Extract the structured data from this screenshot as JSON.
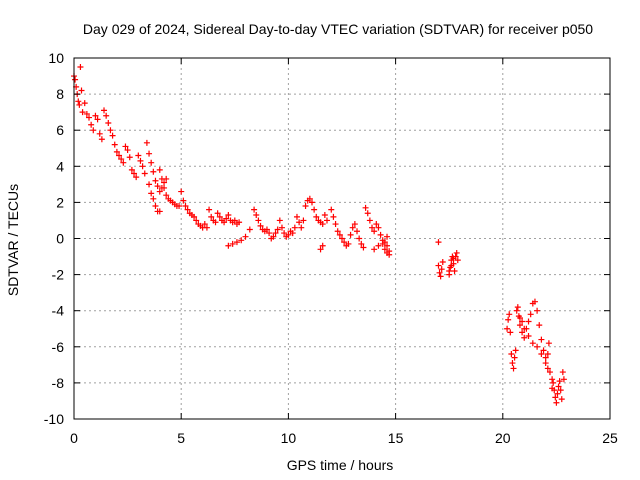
{
  "chart_data": {
    "type": "scatter",
    "title": "Day 029 of 2024, Sidereal Day-to-day VTEC variation (SDTVAR) for receiver p050",
    "xlabel": "GPS time / hours",
    "ylabel": "SDTVAR / TECUs",
    "xlim": [
      0,
      25
    ],
    "ylim": [
      -10,
      10
    ],
    "x_ticks": [
      0,
      5,
      10,
      15,
      20,
      25
    ],
    "y_ticks": [
      -10,
      -8,
      -6,
      -4,
      -2,
      0,
      2,
      4,
      6,
      8,
      10
    ],
    "x_tick_labels": [
      "0",
      "5",
      "10",
      "15",
      "20",
      "25"
    ],
    "y_tick_labels": [
      "-10",
      "-8",
      "-6",
      "-4",
      "-2",
      "0",
      "2",
      "4",
      "6",
      "8",
      "10"
    ],
    "grid": true,
    "marker": "+",
    "series": [
      {
        "name": "SDTVAR",
        "color": "#ff0000",
        "points": [
          [
            0.0,
            9.0
          ],
          [
            0.05,
            8.8
          ],
          [
            0.1,
            8.4
          ],
          [
            0.15,
            8.0
          ],
          [
            0.2,
            7.6
          ],
          [
            0.25,
            7.4
          ],
          [
            0.3,
            9.5
          ],
          [
            0.35,
            8.2
          ],
          [
            0.4,
            7.0
          ],
          [
            0.5,
            7.5
          ],
          [
            0.6,
            6.9
          ],
          [
            0.7,
            6.7
          ],
          [
            0.8,
            6.3
          ],
          [
            0.9,
            6.0
          ],
          [
            1.0,
            6.8
          ],
          [
            1.1,
            6.6
          ],
          [
            1.2,
            5.8
          ],
          [
            1.3,
            5.5
          ],
          [
            1.4,
            7.1
          ],
          [
            1.5,
            6.8
          ],
          [
            1.6,
            6.4
          ],
          [
            1.7,
            6.0
          ],
          [
            1.8,
            5.7
          ],
          [
            1.9,
            5.2
          ],
          [
            2.0,
            4.8
          ],
          [
            2.1,
            4.6
          ],
          [
            2.2,
            4.4
          ],
          [
            2.3,
            4.2
          ],
          [
            2.4,
            5.1
          ],
          [
            2.5,
            4.9
          ],
          [
            2.6,
            4.5
          ],
          [
            2.7,
            3.8
          ],
          [
            2.8,
            3.6
          ],
          [
            2.9,
            3.4
          ],
          [
            3.0,
            4.6
          ],
          [
            3.1,
            4.3
          ],
          [
            3.2,
            4.0
          ],
          [
            3.3,
            3.6
          ],
          [
            3.4,
            5.3
          ],
          [
            3.5,
            4.7
          ],
          [
            3.6,
            4.2
          ],
          [
            3.7,
            3.7
          ],
          [
            3.8,
            3.2
          ],
          [
            3.9,
            2.9
          ],
          [
            4.0,
            3.8
          ],
          [
            4.1,
            3.3
          ],
          [
            4.2,
            2.8
          ],
          [
            4.3,
            2.4
          ],
          [
            4.4,
            2.2
          ],
          [
            4.5,
            2.1
          ],
          [
            3.5,
            3.0
          ],
          [
            3.6,
            2.5
          ],
          [
            3.7,
            2.2
          ],
          [
            3.8,
            1.8
          ],
          [
            3.9,
            1.5
          ],
          [
            4.0,
            1.5
          ],
          [
            4.0,
            2.6
          ],
          [
            4.1,
            2.8
          ],
          [
            4.2,
            3.1
          ],
          [
            4.3,
            3.3
          ],
          [
            4.6,
            2.0
          ],
          [
            4.7,
            1.9
          ],
          [
            4.8,
            1.8
          ],
          [
            4.9,
            1.8
          ],
          [
            5.0,
            2.6
          ],
          [
            5.1,
            2.1
          ],
          [
            5.2,
            1.8
          ],
          [
            5.3,
            1.6
          ],
          [
            5.4,
            1.4
          ],
          [
            5.5,
            1.3
          ],
          [
            5.6,
            1.2
          ],
          [
            5.7,
            1.0
          ],
          [
            5.8,
            0.8
          ],
          [
            5.9,
            0.7
          ],
          [
            6.0,
            0.6
          ],
          [
            6.1,
            0.8
          ],
          [
            6.2,
            0.6
          ],
          [
            6.3,
            1.6
          ],
          [
            6.4,
            1.2
          ],
          [
            6.5,
            1.0
          ],
          [
            6.6,
            0.9
          ],
          [
            6.7,
            1.4
          ],
          [
            6.8,
            1.2
          ],
          [
            6.9,
            1.0
          ],
          [
            7.0,
            0.9
          ],
          [
            7.1,
            1.1
          ],
          [
            7.2,
            1.3
          ],
          [
            7.3,
            1.0
          ],
          [
            7.4,
            0.9
          ],
          [
            7.5,
            1.0
          ],
          [
            7.6,
            0.8
          ],
          [
            7.7,
            0.9
          ],
          [
            7.2,
            -0.4
          ],
          [
            7.4,
            -0.3
          ],
          [
            7.6,
            -0.2
          ],
          [
            7.8,
            -0.1
          ],
          [
            8.0,
            0.1
          ],
          [
            8.2,
            0.5
          ],
          [
            8.4,
            1.6
          ],
          [
            8.5,
            1.3
          ],
          [
            8.6,
            1.0
          ],
          [
            8.7,
            0.7
          ],
          [
            8.8,
            0.5
          ],
          [
            8.9,
            0.4
          ],
          [
            9.0,
            0.5
          ],
          [
            9.1,
            0.3
          ],
          [
            9.2,
            0.0
          ],
          [
            9.3,
            0.1
          ],
          [
            9.4,
            0.3
          ],
          [
            9.5,
            0.5
          ],
          [
            9.6,
            1.0
          ],
          [
            9.7,
            0.6
          ],
          [
            9.8,
            0.3
          ],
          [
            9.9,
            0.1
          ],
          [
            10.0,
            0.2
          ],
          [
            10.1,
            0.4
          ],
          [
            10.2,
            0.3
          ],
          [
            10.3,
            0.6
          ],
          [
            10.4,
            1.2
          ],
          [
            10.5,
            0.9
          ],
          [
            10.6,
            0.6
          ],
          [
            10.7,
            1.0
          ],
          [
            10.8,
            1.8
          ],
          [
            10.9,
            2.1
          ],
          [
            11.0,
            2.2
          ],
          [
            11.1,
            2.0
          ],
          [
            11.2,
            1.6
          ],
          [
            11.3,
            1.2
          ],
          [
            11.4,
            1.0
          ],
          [
            11.5,
            0.9
          ],
          [
            11.6,
            0.8
          ],
          [
            11.7,
            1.3
          ],
          [
            11.8,
            1.0
          ],
          [
            11.5,
            -0.6
          ],
          [
            11.6,
            -0.4
          ],
          [
            12.0,
            1.6
          ],
          [
            12.1,
            1.2
          ],
          [
            12.2,
            0.8
          ],
          [
            12.3,
            0.4
          ],
          [
            12.4,
            0.2
          ],
          [
            12.5,
            0.0
          ],
          [
            12.6,
            -0.2
          ],
          [
            12.7,
            -0.4
          ],
          [
            12.8,
            -0.3
          ],
          [
            12.9,
            0.2
          ],
          [
            13.0,
            0.6
          ],
          [
            13.1,
            0.8
          ],
          [
            13.2,
            0.4
          ],
          [
            13.3,
            0.0
          ],
          [
            13.4,
            -0.3
          ],
          [
            13.5,
            -0.5
          ],
          [
            13.6,
            1.7
          ],
          [
            13.7,
            1.4
          ],
          [
            13.8,
            1.0
          ],
          [
            13.9,
            0.6
          ],
          [
            14.0,
            0.4
          ],
          [
            14.1,
            0.8
          ],
          [
            14.2,
            0.6
          ],
          [
            14.3,
            0.2
          ],
          [
            14.4,
            -0.3
          ],
          [
            14.5,
            -0.6
          ],
          [
            14.6,
            -0.8
          ],
          [
            14.7,
            -0.9
          ],
          [
            14.5,
            -0.2
          ],
          [
            14.6,
            0.1
          ],
          [
            14.0,
            -0.6
          ],
          [
            14.2,
            -0.4
          ],
          [
            14.4,
            -0.1
          ],
          [
            14.6,
            -0.4
          ],
          [
            14.7,
            -0.7
          ],
          [
            17.0,
            -0.2
          ],
          [
            17.0,
            -1.5
          ],
          [
            17.05,
            -1.9
          ],
          [
            17.1,
            -2.1
          ],
          [
            17.15,
            -1.7
          ],
          [
            17.2,
            -1.3
          ],
          [
            17.5,
            -2.0
          ],
          [
            17.55,
            -1.6
          ],
          [
            17.6,
            -1.2
          ],
          [
            17.65,
            -1.0
          ],
          [
            17.7,
            -1.4
          ],
          [
            17.75,
            -1.8
          ],
          [
            17.8,
            -1.0
          ],
          [
            17.85,
            -0.8
          ],
          [
            17.9,
            -1.2
          ],
          [
            17.5,
            -1.8
          ],
          [
            17.6,
            -1.5
          ],
          [
            17.7,
            -1.1
          ],
          [
            20.2,
            -5.0
          ],
          [
            20.25,
            -4.5
          ],
          [
            20.3,
            -4.2
          ],
          [
            20.35,
            -5.2
          ],
          [
            20.4,
            -6.4
          ],
          [
            20.45,
            -6.9
          ],
          [
            20.5,
            -7.2
          ],
          [
            20.55,
            -6.6
          ],
          [
            20.6,
            -6.2
          ],
          [
            20.65,
            -4.0
          ],
          [
            20.7,
            -3.8
          ],
          [
            20.75,
            -4.3
          ],
          [
            20.8,
            -4.8
          ],
          [
            20.9,
            -5.2
          ],
          [
            21.0,
            -5.5
          ],
          [
            21.1,
            -5.0
          ],
          [
            21.2,
            -4.6
          ],
          [
            21.3,
            -4.2
          ],
          [
            21.4,
            -3.6
          ],
          [
            21.5,
            -3.5
          ],
          [
            21.6,
            -4.0
          ],
          [
            21.7,
            -4.8
          ],
          [
            21.8,
            -5.6
          ],
          [
            21.9,
            -6.2
          ],
          [
            22.0,
            -6.6
          ],
          [
            22.1,
            -6.4
          ],
          [
            22.15,
            -5.8
          ],
          [
            22.2,
            -7.4
          ],
          [
            22.3,
            -7.8
          ],
          [
            22.35,
            -8.0
          ],
          [
            22.4,
            -8.4
          ],
          [
            22.45,
            -8.8
          ],
          [
            22.5,
            -9.1
          ],
          [
            22.55,
            -8.6
          ],
          [
            22.6,
            -8.2
          ],
          [
            22.65,
            -7.9
          ],
          [
            22.7,
            -8.4
          ],
          [
            22.75,
            -8.9
          ],
          [
            22.8,
            -7.4
          ],
          [
            22.85,
            -7.8
          ],
          [
            20.8,
            -4.4
          ],
          [
            20.9,
            -4.6
          ],
          [
            21.0,
            -5.0
          ],
          [
            21.2,
            -5.4
          ],
          [
            21.4,
            -5.8
          ],
          [
            21.6,
            -6.0
          ],
          [
            21.8,
            -6.4
          ],
          [
            22.0,
            -6.9
          ],
          [
            22.1,
            -7.2
          ],
          [
            22.3,
            -8.3
          ]
        ]
      }
    ]
  }
}
